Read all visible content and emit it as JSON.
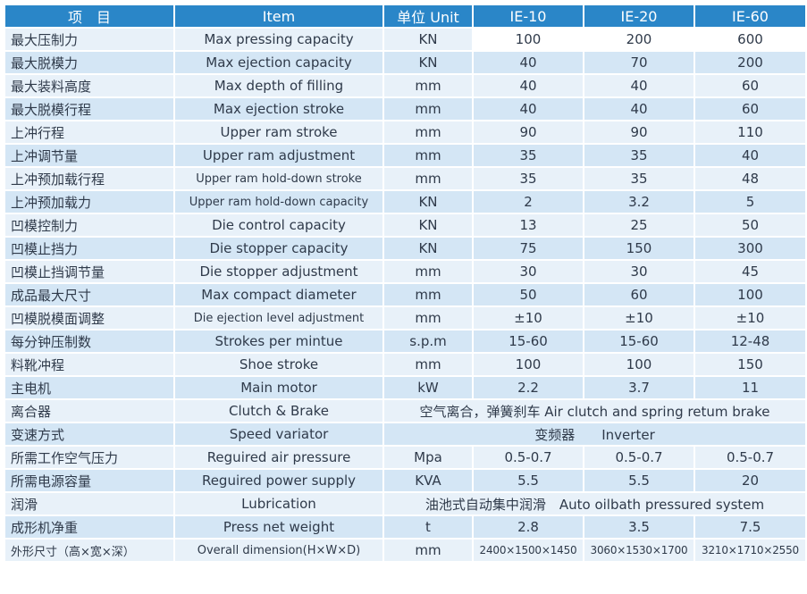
{
  "headers": [
    "项　目",
    "Item",
    "单位 Unit",
    "IE-10",
    "IE-20",
    "IE-60"
  ],
  "rows": [
    {
      "cn": "最大压制力",
      "en": "Max pressing capacity",
      "unit": "KN",
      "v": [
        "100",
        "200",
        "600"
      ]
    },
    {
      "cn": "最大脱模力",
      "en": "Max ejection capacity",
      "unit": "KN",
      "v": [
        "40",
        "70",
        "200"
      ]
    },
    {
      "cn": "最大装料高度",
      "en": "Max depth of filling",
      "unit": "mm",
      "v": [
        "40",
        "40",
        "60"
      ]
    },
    {
      "cn": "最大脱模行程",
      "en": "Max ejection stroke",
      "unit": "mm",
      "v": [
        "40",
        "40",
        "60"
      ]
    },
    {
      "cn": "上冲行程",
      "en": "Upper ram stroke",
      "unit": "mm",
      "v": [
        "90",
        "90",
        "110"
      ]
    },
    {
      "cn": "上冲调节量",
      "en": "Upper ram adjustment",
      "unit": "mm",
      "v": [
        "35",
        "35",
        "40"
      ]
    },
    {
      "cn": "上冲预加载行程",
      "en": "Upper ram hold-down stroke",
      "unit": "mm",
      "v": [
        "35",
        "35",
        "48"
      ]
    },
    {
      "cn": "上冲预加载力",
      "en": "Upper ram hold-down capacity",
      "unit": "KN",
      "v": [
        "2",
        "3.2",
        "5"
      ]
    },
    {
      "cn": "凹模控制力",
      "en": "Die control capacity",
      "unit": "KN",
      "v": [
        "13",
        "25",
        "50"
      ]
    },
    {
      "cn": "凹模止挡力",
      "en": "Die stopper capacity",
      "unit": "KN",
      "v": [
        "75",
        "150",
        "300"
      ]
    },
    {
      "cn": "凹模止挡调节量",
      "en": "Die stopper adjustment",
      "unit": "mm",
      "v": [
        "30",
        "30",
        "45"
      ]
    },
    {
      "cn": "成品最大尺寸",
      "en": "Max compact diameter",
      "unit": "mm",
      "v": [
        "50",
        "60",
        "100"
      ]
    },
    {
      "cn": "凹模脱模面调整",
      "en": "Die ejection level adjustment",
      "unit": "mm",
      "v": [
        "±10",
        "±10",
        "±10"
      ]
    },
    {
      "cn": "每分钟压制数",
      "en": "Strokes per mintue",
      "unit": "s.p.m",
      "v": [
        "15-60",
        "15-60",
        "12-48"
      ]
    },
    {
      "cn": "料靴冲程",
      "en": "Shoe stroke",
      "unit": "mm",
      "v": [
        "100",
        "100",
        "150"
      ]
    },
    {
      "cn": "主电机",
      "en": "Main motor",
      "unit": "kW",
      "v": [
        "2.2",
        "3.7",
        "11"
      ]
    }
  ],
  "clutch": {
    "cn": "离合器",
    "en": "Clutch & Brake",
    "value": "空气离合，弹簧刹车 Air clutch and spring retum brake"
  },
  "speed": {
    "cn": "变速方式",
    "en": "Speed variator",
    "value": "变频器　　Inverter"
  },
  "air": {
    "cn": "所需工作空气压力",
    "en": "Reguired air pressure",
    "unit": "Mpa",
    "v": [
      "0.5-0.7",
      "0.5-0.7",
      "0.5-0.7"
    ]
  },
  "power": {
    "cn": "所需电源容量",
    "en": "Reguired power supply",
    "unit": "KVA",
    "v": [
      "5.5",
      "5.5",
      "20"
    ]
  },
  "lube": {
    "cn": "润滑",
    "en": "Lubrication",
    "value": "油池式自动集中润滑　Auto oilbath pressured system"
  },
  "weight": {
    "cn": "成形机净重",
    "en": "Press net weight",
    "unit": "t",
    "v": [
      "2.8",
      "3.5",
      "7.5"
    ]
  },
  "dim": {
    "cn": "外形尺寸（高×宽×深）",
    "en": "Overall dimension(H×W×D)",
    "unit": "mm",
    "v": [
      "2400×1500×1450",
      "3060×1530×1700",
      "3210×1710×2550"
    ]
  }
}
